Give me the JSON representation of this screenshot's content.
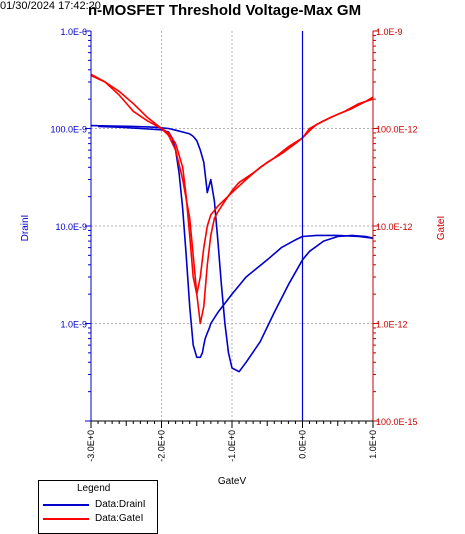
{
  "header": {
    "timestamp": "01/30/2024 17:42:20",
    "title": "n-MOSFET Threshold Voltage-Max GM"
  },
  "chart_data": {
    "type": "line",
    "title": "n-MOSFET Threshold Voltage-Max GM",
    "xlabel": "GateV",
    "ylabel_left": "DrainI",
    "ylabel_right": "GateI",
    "xlim": [
      -3.0,
      1.0
    ],
    "ylim_left": [
      1e-10,
      1e-06
    ],
    "ylim_right": [
      1e-13,
      1e-09
    ],
    "yscale": "log",
    "grid": true,
    "x_ticks": [
      "-3.0E+0",
      "-2.0E+0",
      "-1.0E+0",
      "0.0E+0",
      "1.0E+0"
    ],
    "y_ticks_left": [
      "1.0E-6",
      "100.0E-9",
      "10.0E-9",
      "1.0E-9"
    ],
    "y_ticks_right": [
      "1.0E-9",
      "100.0E-12",
      "10.0E-12",
      "1.0E-12",
      "100.0E-15"
    ],
    "legend_position": "bottom-left",
    "legend": {
      "title": "Legend",
      "items": [
        {
          "label": "Data:DrainI",
          "color": "#0000cc"
        },
        {
          "label": "Data:GateI",
          "color": "#ff0000"
        }
      ]
    },
    "colors": {
      "drain": "#0000cc",
      "gate": "#ff0000",
      "zero_line": "#0000cc",
      "grid": "#b4b4b4"
    },
    "series": [
      {
        "name": "Data:DrainI",
        "axis": "left",
        "x": [
          -2.9,
          -2.6,
          -2.3,
          -2.0,
          -1.9,
          -1.85,
          -1.8,
          -1.75,
          -1.7,
          -1.65,
          -1.6,
          -1.55,
          -1.5,
          -1.45,
          -1.42,
          -1.4,
          -1.38,
          -1.35,
          -1.32,
          -1.3,
          -1.2,
          -1.0,
          -0.8,
          -0.5,
          -0.3,
          -0.1,
          0.0,
          0.2,
          0.5,
          0.8,
          1.0
        ],
        "y": [
          1.05e-07,
          1.03e-07,
          1e-07,
          9.7e-08,
          9.2e-08,
          8e-08,
          6e-08,
          3.5e-08,
          1.5e-08,
          5e-09,
          1.5e-09,
          6e-10,
          4.5e-10,
          4.5e-10,
          5e-10,
          6e-10,
          7e-10,
          8e-10,
          9e-10,
          1e-09,
          1.3e-09,
          2e-09,
          3e-09,
          4.5e-09,
          6e-09,
          7.2e-09,
          7.8e-09,
          8e-09,
          8e-09,
          7.8e-09,
          7.5e-09
        ]
      },
      {
        "name": "Data:DrainI",
        "axis": "left",
        "x": [
          1.0,
          0.9,
          0.7,
          0.5,
          0.3,
          0.1,
          0.0,
          -0.2,
          -0.4,
          -0.6,
          -0.8,
          -0.9,
          -1.0,
          -1.05,
          -1.1,
          -1.15,
          -1.2,
          -1.25,
          -1.3,
          -1.35,
          -1.4,
          -1.45,
          -1.5,
          -1.55,
          -1.6,
          -1.7,
          -1.8,
          -1.9,
          -2.1,
          -2.4,
          -2.7,
          -3.0
        ],
        "y": [
          7.5e-09,
          7.8e-09,
          8e-09,
          7.8e-09,
          7e-09,
          5.5e-09,
          4.5e-09,
          2.5e-09,
          1.3e-09,
          6.5e-10,
          4e-10,
          3.2e-10,
          3.5e-10,
          5e-10,
          1e-09,
          2.5e-09,
          7e-09,
          1.8e-08,
          3e-08,
          2.2e-08,
          4.5e-08,
          6e-08,
          7.5e-08,
          8.3e-08,
          8.8e-08,
          9.2e-08,
          9.6e-08,
          1e-07,
          1.03e-07,
          1.05e-07,
          1.06e-07,
          1.07e-07
        ]
      },
      {
        "name": "Data:GateI",
        "axis": "right",
        "x": [
          -3.0,
          -2.8,
          -2.6,
          -2.4,
          -2.2,
          -2.0,
          -1.9,
          -1.8,
          -1.7,
          -1.65,
          -1.6,
          -1.55,
          -1.5,
          -1.45,
          -1.4,
          -1.35,
          -1.3,
          -1.2,
          -1.0,
          -0.8,
          -0.6,
          -0.4,
          -0.2,
          0.0,
          0.1,
          0.3,
          0.5,
          0.7,
          0.9,
          1.0
        ],
        "y": [
          3.5e-10,
          3e-10,
          2.2e-10,
          1.5e-10,
          1.2e-10,
          1e-10,
          9e-11,
          7e-11,
          4e-11,
          2e-11,
          8e-12,
          3e-12,
          2e-12,
          3e-12,
          6e-12,
          1e-11,
          1.3e-11,
          1.6e-11,
          2.2e-11,
          3e-11,
          4e-11,
          5e-11,
          6.5e-11,
          8e-11,
          1e-10,
          1.2e-10,
          1.4e-10,
          1.6e-10,
          1.9e-10,
          2.1e-10
        ]
      },
      {
        "name": "Data:GateI",
        "axis": "right",
        "x": [
          1.0,
          0.8,
          0.6,
          0.4,
          0.2,
          0.1,
          0.0,
          -0.1,
          -0.3,
          -0.5,
          -0.7,
          -0.9,
          -1.0,
          -1.1,
          -1.2,
          -1.25,
          -1.3,
          -1.35,
          -1.4,
          -1.45,
          -1.5,
          -1.55,
          -1.6,
          -1.7,
          -1.8,
          -1.9,
          -2.0,
          -2.2,
          -2.4,
          -2.6,
          -2.8,
          -3.0
        ],
        "y": [
          2e-10,
          1.8e-10,
          1.5e-10,
          1.3e-10,
          1.1e-10,
          9.5e-11,
          8e-11,
          7e-11,
          5.5e-11,
          4.5e-11,
          3.5e-11,
          2.8e-11,
          2.3e-11,
          1.8e-11,
          1.4e-11,
          1.2e-11,
          8e-12,
          4e-12,
          1.5e-12,
          1e-12,
          2e-12,
          5e-12,
          1.2e-11,
          3e-11,
          6e-11,
          8.5e-11,
          1e-10,
          1.3e-10,
          1.8e-10,
          2.4e-10,
          3e-10,
          3.6e-10
        ]
      }
    ]
  }
}
